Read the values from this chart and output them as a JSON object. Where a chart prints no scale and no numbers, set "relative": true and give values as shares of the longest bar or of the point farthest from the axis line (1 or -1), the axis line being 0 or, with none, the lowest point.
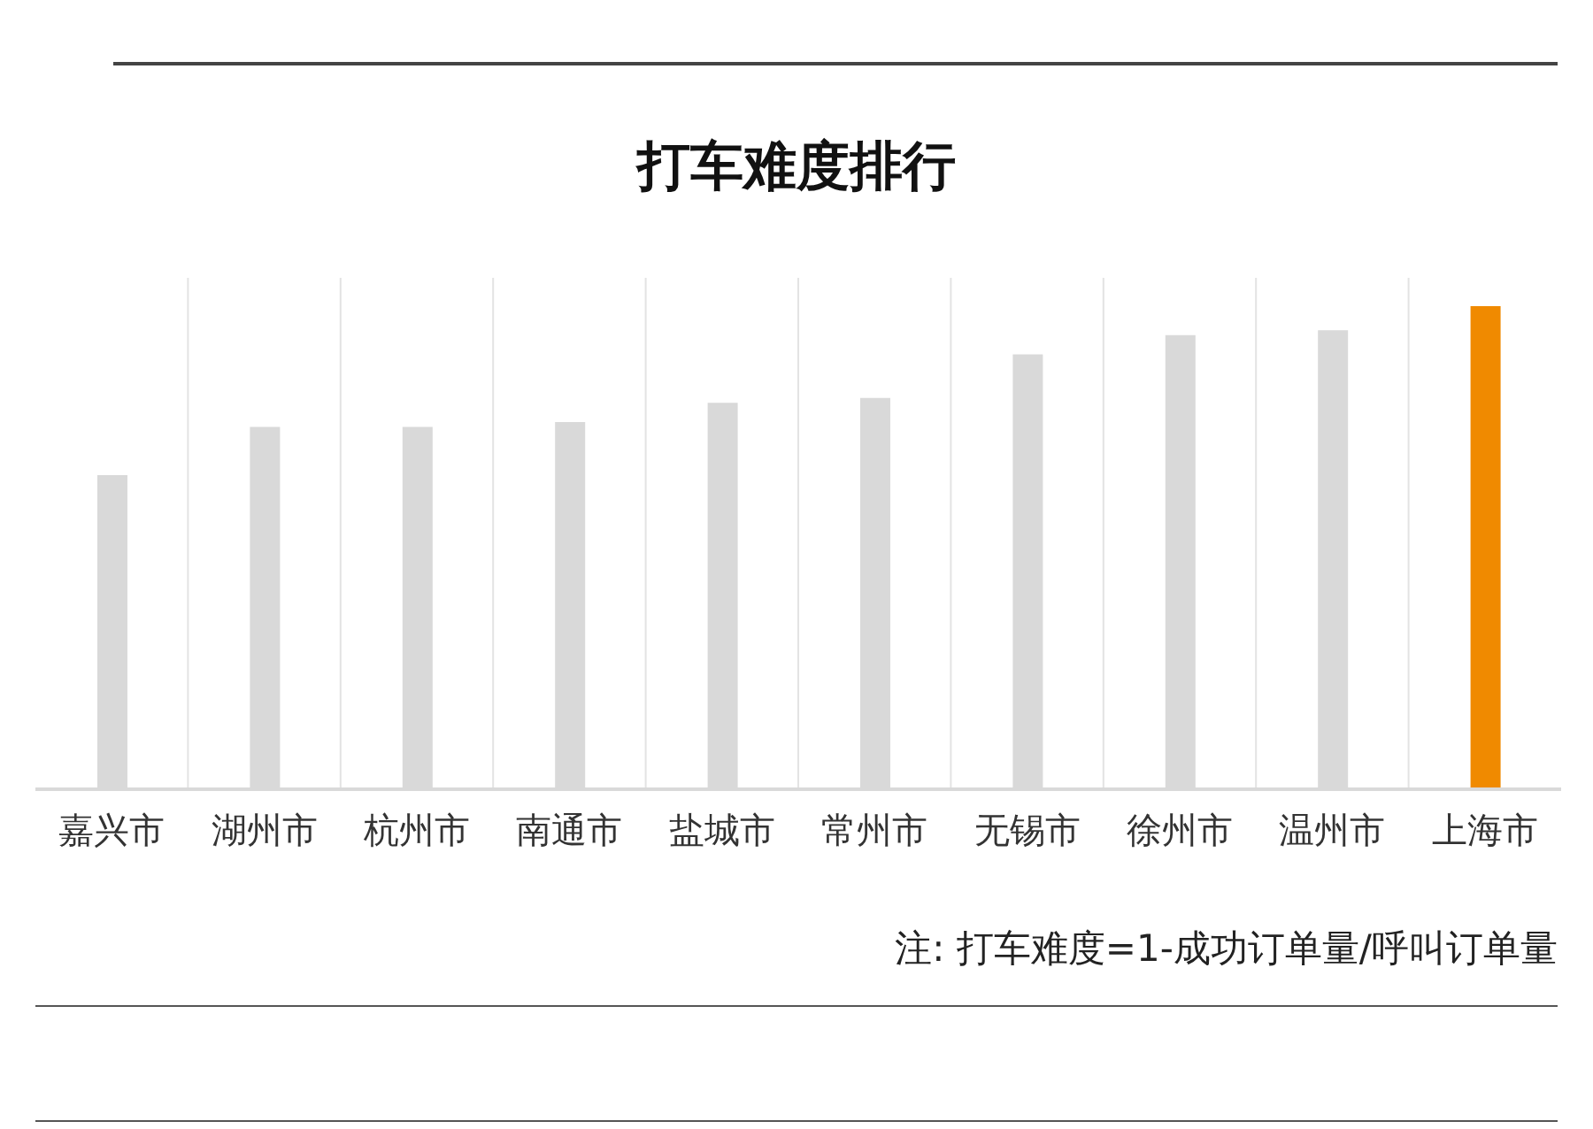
{
  "chart_data": {
    "type": "bar",
    "title": "打车难度排行",
    "categories": [
      "嘉兴市",
      "湖州市",
      "杭州市",
      "南通市",
      "盐城市",
      "常州市",
      "无锡市",
      "徐州市",
      "温州市",
      "上海市"
    ],
    "values": [
      0.65,
      0.75,
      0.75,
      0.76,
      0.8,
      0.81,
      0.9,
      0.94,
      0.95,
      1
    ],
    "colors": [
      "#d9d9d9",
      "#d9d9d9",
      "#d9d9d9",
      "#d9d9d9",
      "#d9d9d9",
      "#d9d9d9",
      "#d9d9d9",
      "#d9d9d9",
      "#d9d9d9",
      "#f08a00"
    ],
    "relative": true,
    "grid": "x",
    "annotations": [
      "注: 打车难度=1-成功订单量/呼叫订单量"
    ]
  }
}
